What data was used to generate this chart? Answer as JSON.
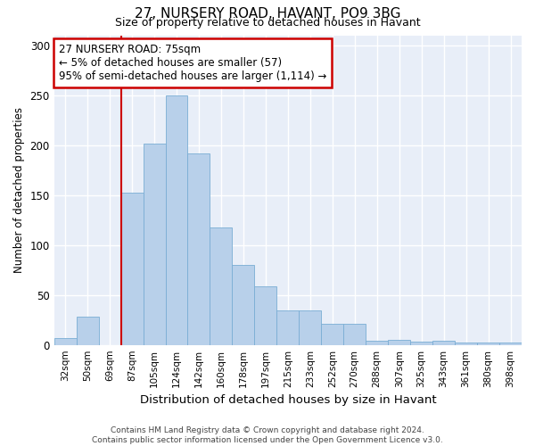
{
  "title1": "27, NURSERY ROAD, HAVANT, PO9 3BG",
  "title2": "Size of property relative to detached houses in Havant",
  "xlabel": "Distribution of detached houses by size in Havant",
  "ylabel": "Number of detached properties",
  "bar_color": "#b8d0ea",
  "bar_edge_color": "#7aadd4",
  "categories": [
    "32sqm",
    "50sqm",
    "69sqm",
    "87sqm",
    "105sqm",
    "124sqm",
    "142sqm",
    "160sqm",
    "178sqm",
    "197sqm",
    "215sqm",
    "233sqm",
    "252sqm",
    "270sqm",
    "288sqm",
    "307sqm",
    "325sqm",
    "343sqm",
    "361sqm",
    "380sqm",
    "398sqm"
  ],
  "values": [
    7,
    28,
    0,
    153,
    202,
    250,
    192,
    118,
    80,
    59,
    35,
    35,
    21,
    21,
    4,
    5,
    3,
    4,
    2,
    2,
    2
  ],
  "vline_color": "#cc0000",
  "annotation_text": "27 NURSERY ROAD: 75sqm\n← 5% of detached houses are smaller (57)\n95% of semi-detached houses are larger (1,114) →",
  "ylim": [
    0,
    310
  ],
  "yticks": [
    0,
    50,
    100,
    150,
    200,
    250,
    300
  ],
  "background_color": "#e8eef8",
  "grid_color": "#ffffff",
  "footer": "Contains HM Land Registry data © Crown copyright and database right 2024.\nContains public sector information licensed under the Open Government Licence v3.0."
}
